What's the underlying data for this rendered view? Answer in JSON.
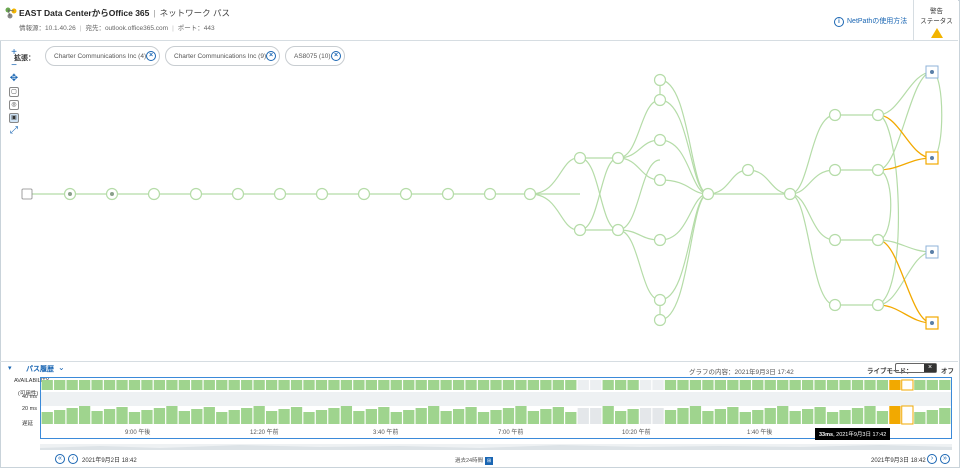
{
  "header": {
    "title": "EAST Data CenterからOffice 365",
    "path_label": "ネットワーク パス",
    "source_label": "情報源：10.1.40.26",
    "dest_label": "宛先：outlook.office365.com",
    "port_label": "ポート：443",
    "howto_label": "NetPathの使用方法",
    "status_top": "警告",
    "status_bottom": "ステータス"
  },
  "toolbar": {
    "icons": [
      "zoom-in-icon",
      "zoom-out-icon",
      "pan-icon",
      "layout-icon",
      "fit-icon",
      "image-icon",
      "expand-icon"
    ]
  },
  "expansion": {
    "label": "拡張：",
    "chips": [
      "Charter Communications Inc (4)",
      "Charter Communications Inc (9)",
      "AS8075 (10)"
    ]
  },
  "history": {
    "title": "パス履歴",
    "graph_content": "グラフの内容：2021年9月3日 17:42",
    "live_mode_label": "ライブモード：",
    "live_off": "オフ",
    "y_availability": "AVAILABILITY",
    "y_availability_jp": "(可用性)",
    "y_40": "40 ms",
    "y_20": "20 ms",
    "y_latency": "遅延",
    "ticks": [
      "9:00 午後",
      "12:20 午前",
      "3:40 午前",
      "7:00 午前",
      "10:20 午前",
      "1:40 午後"
    ],
    "tooltip_bold": "33ms",
    "tooltip_rest": ", 2021年9月3日 17:42",
    "start_date": "2021年9月2日 18:42",
    "end_date": "2021年9月3日 18:42",
    "zoom_label": "過去24時間"
  },
  "colors": {
    "accent": "#1a66b3",
    "good_bar": "#9fd48e",
    "warn_bar": "#f2a900",
    "path_green": "#b5dca8",
    "path_orange": "#f2a900"
  }
}
